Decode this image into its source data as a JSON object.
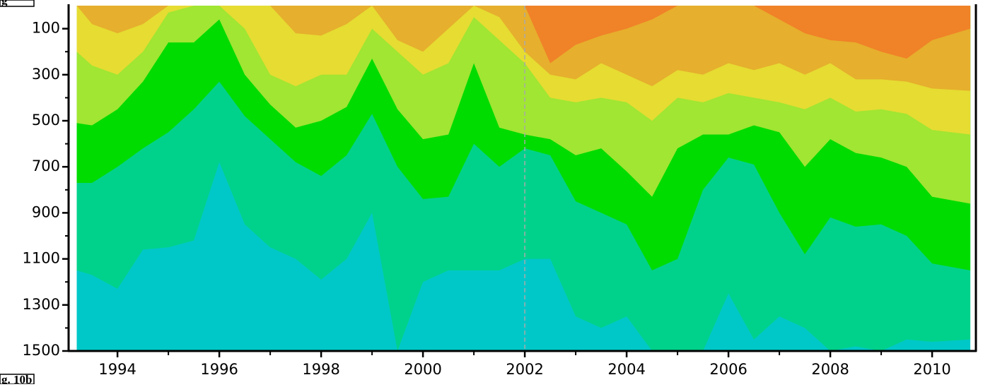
{
  "chart_data": {
    "type": "contour",
    "x": [
      1993.2,
      1993.5,
      1994,
      1994.5,
      1995,
      1995.5,
      1996,
      1996.5,
      1997,
      1997.5,
      1998,
      1998.5,
      1999,
      1999.5,
      2000,
      2000.5,
      2001,
      2001.5,
      2002,
      2002.5,
      2003,
      2003.5,
      2004,
      2004.5,
      2005,
      2005.5,
      2006,
      2006.5,
      2007,
      2007.5,
      2008,
      2008.5,
      2009,
      2009.5,
      2010,
      2010.75
    ],
    "background_color": "#00c8c8",
    "series": [
      {
        "color": "#00d28c",
        "values": [
          1150,
          1170,
          1230,
          1060,
          1050,
          1020,
          680,
          950,
          1050,
          1100,
          1190,
          1100,
          900,
          1500,
          1200,
          1150,
          1150,
          1150,
          1100,
          1100,
          1350,
          1400,
          1350,
          1500,
          1500,
          1500,
          1250,
          1450,
          1350,
          1400,
          1500,
          1480,
          1500,
          1450,
          1460,
          1450
        ]
      },
      {
        "color": "#00dc00",
        "values": [
          770,
          770,
          700,
          620,
          550,
          450,
          330,
          480,
          580,
          680,
          740,
          650,
          470,
          700,
          840,
          830,
          600,
          700,
          620,
          650,
          850,
          900,
          950,
          1150,
          1100,
          800,
          660,
          690,
          900,
          1080,
          920,
          960,
          950,
          1000,
          1120,
          1150
        ]
      },
      {
        "color": "#a0e632",
        "values": [
          510,
          520,
          450,
          330,
          160,
          160,
          60,
          300,
          430,
          530,
          500,
          440,
          230,
          450,
          580,
          560,
          250,
          530,
          560,
          580,
          650,
          620,
          720,
          830,
          620,
          560,
          560,
          520,
          550,
          700,
          580,
          640,
          660,
          700,
          830,
          860
        ]
      },
      {
        "color": "#e6dc32",
        "values": [
          200,
          260,
          300,
          200,
          30,
          0,
          0,
          100,
          300,
          350,
          300,
          300,
          100,
          200,
          300,
          250,
          50,
          150,
          250,
          400,
          420,
          400,
          420,
          500,
          400,
          420,
          380,
          400,
          420,
          450,
          400,
          460,
          450,
          470,
          540,
          560
        ]
      },
      {
        "color": "#e6af2d",
        "values": [
          0,
          80,
          120,
          80,
          0,
          0,
          0,
          0,
          0,
          120,
          130,
          80,
          0,
          150,
          200,
          100,
          0,
          50,
          200,
          300,
          320,
          250,
          300,
          350,
          280,
          300,
          250,
          280,
          250,
          300,
          250,
          320,
          320,
          330,
          360,
          370
        ]
      },
      {
        "color": "#f08228",
        "values": [
          0,
          0,
          0,
          0,
          0,
          0,
          0,
          0,
          0,
          0,
          0,
          0,
          0,
          0,
          0,
          0,
          0,
          0,
          0,
          250,
          170,
          130,
          100,
          60,
          0,
          0,
          0,
          0,
          60,
          120,
          150,
          160,
          200,
          230,
          150,
          100
        ]
      }
    ],
    "xlim": [
      1993.04,
      2010.86
    ],
    "xticks": [
      1994,
      1996,
      1998,
      2000,
      2002,
      2004,
      2006,
      2008,
      2010
    ],
    "xminorticks": [
      1995,
      1997,
      1999,
      2001,
      2003,
      2005,
      2007,
      2009
    ],
    "ylim": [
      1500,
      0
    ],
    "yticks": [
      100,
      300,
      500,
      700,
      900,
      1100,
      1300,
      1500
    ],
    "yminorticks": [
      200,
      400,
      600,
      800,
      1000,
      1200,
      1400
    ],
    "vline": 2002,
    "corner_label_top": "g",
    "corner_label_bottom": "g. 10b"
  }
}
